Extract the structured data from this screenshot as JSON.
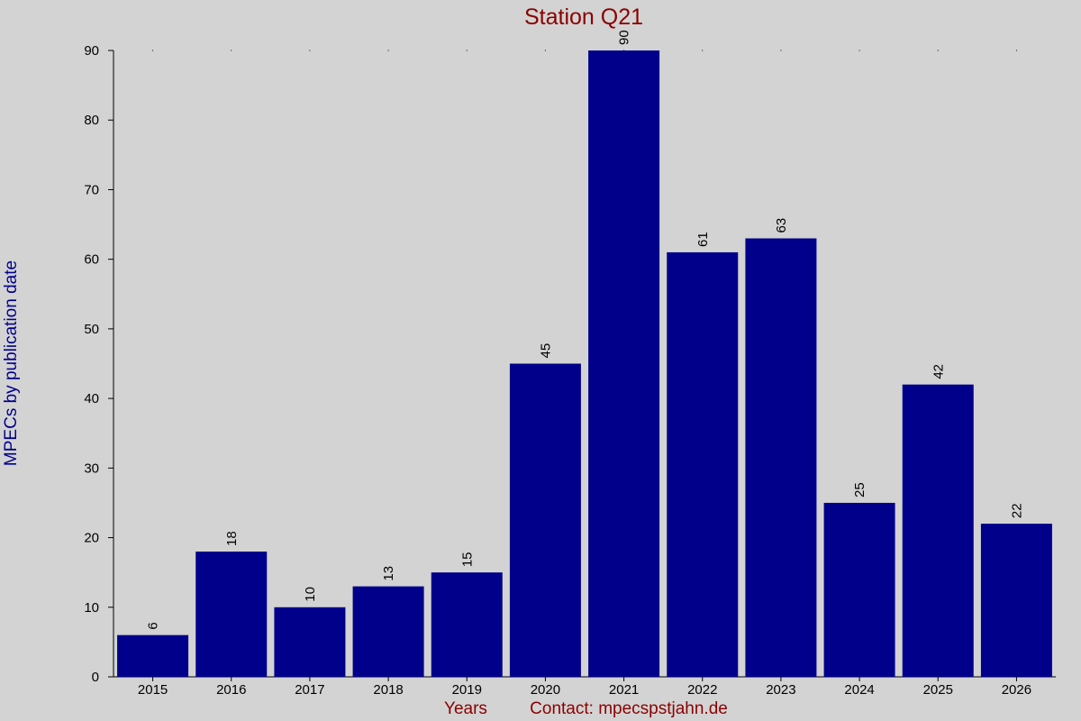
{
  "chart_data": {
    "type": "bar",
    "title": "Station Q21",
    "xlabel": "Years",
    "ylabel": "MPECs by publication date",
    "footer": "Contact: mpecsрstjahn.de",
    "categories": [
      "2015",
      "2016",
      "2017",
      "2018",
      "2019",
      "2020",
      "2021",
      "2022",
      "2023",
      "2024",
      "2025",
      "2026"
    ],
    "values": [
      6,
      18,
      10,
      13,
      15,
      45,
      90,
      61,
      63,
      25,
      42,
      22
    ],
    "ylim": [
      0,
      90
    ],
    "yticks": [
      "0",
      "10",
      "20",
      "30",
      "40",
      "50",
      "60",
      "70",
      "80",
      "90"
    ],
    "bar_color": "#00008b",
    "title_color": "#8b0000",
    "ylabel_color": "#00008b",
    "background": "#d3d3d3",
    "grid": "dotted marks at top",
    "data_labels": "rotated, above bars"
  }
}
